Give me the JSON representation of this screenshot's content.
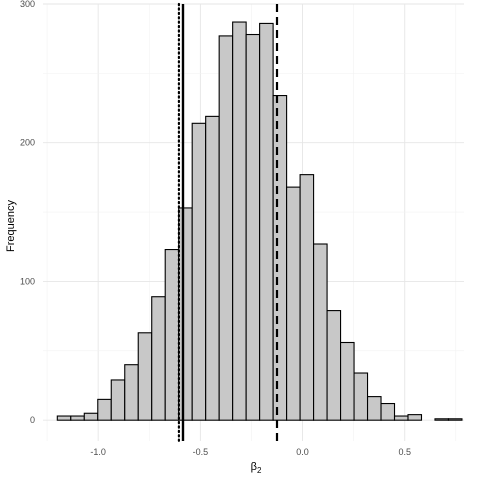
{
  "chart_data": {
    "type": "bar",
    "subtype": "histogram",
    "xlabel": "β",
    "xlabel_subscript": "2",
    "ylabel": "Frequency",
    "xlim": [
      -1.27,
      0.79
    ],
    "ylim": [
      -15,
      300
    ],
    "x_ticks": [
      -1.0,
      -0.5,
      0.0,
      0.5
    ],
    "x_tick_labels": [
      "-1.0",
      "-0.5",
      "0.0",
      "0.5"
    ],
    "y_ticks": [
      0,
      100,
      200,
      300
    ],
    "y_tick_labels": [
      "0",
      "100",
      "200",
      "300"
    ],
    "grid": true,
    "bin_width": 0.066,
    "bins": [
      {
        "left": -1.2,
        "count": 3
      },
      {
        "left": -1.134,
        "count": 3
      },
      {
        "left": -1.068,
        "count": 5
      },
      {
        "left": -1.002,
        "count": 15
      },
      {
        "left": -0.936,
        "count": 29
      },
      {
        "left": -0.87,
        "count": 40
      },
      {
        "left": -0.804,
        "count": 63
      },
      {
        "left": -0.738,
        "count": 89
      },
      {
        "left": -0.672,
        "count": 123
      },
      {
        "left": -0.606,
        "count": 153
      },
      {
        "left": -0.54,
        "count": 214
      },
      {
        "left": -0.474,
        "count": 219
      },
      {
        "left": -0.408,
        "count": 277
      },
      {
        "left": -0.342,
        "count": 287
      },
      {
        "left": -0.276,
        "count": 278
      },
      {
        "left": -0.21,
        "count": 286
      },
      {
        "left": -0.144,
        "count": 234
      },
      {
        "left": -0.078,
        "count": 168
      },
      {
        "left": -0.012,
        "count": 177
      },
      {
        "left": 0.054,
        "count": 127
      },
      {
        "left": 0.12,
        "count": 79
      },
      {
        "left": 0.186,
        "count": 56
      },
      {
        "left": 0.252,
        "count": 34
      },
      {
        "left": 0.318,
        "count": 17
      },
      {
        "left": 0.384,
        "count": 12
      },
      {
        "left": 0.45,
        "count": 3
      },
      {
        "left": 0.516,
        "count": 4
      },
      {
        "left": 0.582,
        "count": 0
      },
      {
        "left": 0.648,
        "count": 1
      },
      {
        "left": 0.714,
        "count": 1
      }
    ],
    "bar_fill": "#c8c8c8",
    "bar_stroke": "#000000",
    "reference_lines": [
      {
        "x": -0.605,
        "style": "dotted"
      },
      {
        "x": -0.585,
        "style": "solid"
      },
      {
        "x": -0.125,
        "style": "dashed"
      }
    ]
  }
}
